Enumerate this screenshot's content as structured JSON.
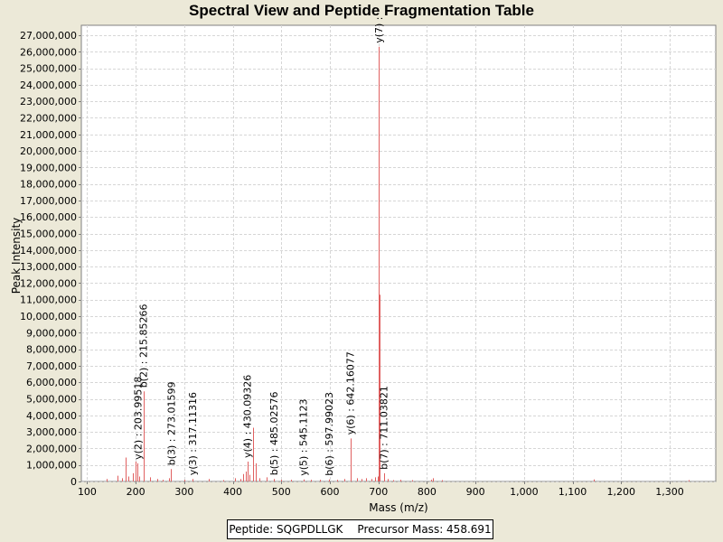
{
  "chart_data": {
    "type": "bar",
    "title": "Spectral View and Peptide Fragmentation Table",
    "xlabel": "Mass (m/z)",
    "ylabel": "Peak Intensity",
    "xlim": [
      88,
      1395
    ],
    "ylim": [
      0,
      27600000
    ],
    "x_ticks": [
      100,
      200,
      300,
      400,
      500,
      600,
      700,
      800,
      900,
      1000,
      1100,
      1200,
      1300
    ],
    "x_tick_labels": [
      "100",
      "200",
      "300",
      "400",
      "500",
      "600",
      "700",
      "800",
      "900",
      "1,000",
      "1,100",
      "1,200",
      "1,300"
    ],
    "y_ticks": [
      0,
      1000000,
      2000000,
      3000000,
      4000000,
      5000000,
      6000000,
      7000000,
      8000000,
      9000000,
      10000000,
      11000000,
      12000000,
      13000000,
      14000000,
      15000000,
      16000000,
      17000000,
      18000000,
      19000000,
      20000000,
      21000000,
      22000000,
      23000000,
      24000000,
      25000000,
      26000000,
      27000000
    ],
    "y_tick_labels": [
      "0",
      "1,000,000",
      "2,000,000",
      "3,000,000",
      "4,000,000",
      "5,000,000",
      "6,000,000",
      "7,000,000",
      "8,000,000",
      "9,000,000",
      "10,000,000",
      "11,000,000",
      "12,000,000",
      "13,000,000",
      "14,000,000",
      "15,000,000",
      "16,000,000",
      "17,000,000",
      "18,000,000",
      "19,000,000",
      "20,000,000",
      "21,000,000",
      "22,000,000",
      "23,000,000",
      "24,000,000",
      "25,000,000",
      "26,000,000",
      "27,000,000"
    ],
    "grid": true,
    "peak_color": "#e06060",
    "peaks": [
      {
        "x": 140,
        "y": 150000
      },
      {
        "x": 163,
        "y": 350000
      },
      {
        "x": 171,
        "y": 200000
      },
      {
        "x": 179,
        "y": 1450000
      },
      {
        "x": 184,
        "y": 300000
      },
      {
        "x": 194,
        "y": 500000
      },
      {
        "x": 199,
        "y": 1200000
      },
      {
        "x": 203.99518,
        "y": 1100000
      },
      {
        "x": 207,
        "y": 300000
      },
      {
        "x": 215.85266,
        "y": 5450000
      },
      {
        "x": 230,
        "y": 250000
      },
      {
        "x": 245,
        "y": 150000
      },
      {
        "x": 255,
        "y": 100000
      },
      {
        "x": 268,
        "y": 200000
      },
      {
        "x": 273.01599,
        "y": 750000
      },
      {
        "x": 300,
        "y": 100000
      },
      {
        "x": 317.11316,
        "y": 150000
      },
      {
        "x": 350,
        "y": 150000
      },
      {
        "x": 380,
        "y": 80000
      },
      {
        "x": 405,
        "y": 200000
      },
      {
        "x": 415,
        "y": 150000
      },
      {
        "x": 422,
        "y": 450000
      },
      {
        "x": 427,
        "y": 600000
      },
      {
        "x": 430.09326,
        "y": 1200000
      },
      {
        "x": 435,
        "y": 400000
      },
      {
        "x": 441,
        "y": 3250000
      },
      {
        "x": 448,
        "y": 1100000
      },
      {
        "x": 455,
        "y": 200000
      },
      {
        "x": 470,
        "y": 250000
      },
      {
        "x": 485.02576,
        "y": 150000
      },
      {
        "x": 500,
        "y": 100000
      },
      {
        "x": 520,
        "y": 100000
      },
      {
        "x": 545.1123,
        "y": 120000
      },
      {
        "x": 560,
        "y": 100000
      },
      {
        "x": 580,
        "y": 100000
      },
      {
        "x": 597.99023,
        "y": 120000
      },
      {
        "x": 615,
        "y": 100000
      },
      {
        "x": 630,
        "y": 150000
      },
      {
        "x": 642.16077,
        "y": 2600000
      },
      {
        "x": 655,
        "y": 200000
      },
      {
        "x": 665,
        "y": 150000
      },
      {
        "x": 675,
        "y": 200000
      },
      {
        "x": 685,
        "y": 150000
      },
      {
        "x": 693,
        "y": 250000
      },
      {
        "x": 698,
        "y": 300000
      },
      {
        "x": 700.5,
        "y": 26300000
      },
      {
        "x": 701.5,
        "y": 11300000
      },
      {
        "x": 703,
        "y": 4700000
      },
      {
        "x": 711.03821,
        "y": 500000
      },
      {
        "x": 720,
        "y": 150000
      },
      {
        "x": 730,
        "y": 80000
      },
      {
        "x": 745,
        "y": 100000
      },
      {
        "x": 770,
        "y": 80000
      },
      {
        "x": 808,
        "y": 100000
      },
      {
        "x": 812,
        "y": 200000
      },
      {
        "x": 830,
        "y": 80000
      },
      {
        "x": 1143,
        "y": 120000
      },
      {
        "x": 1340,
        "y": 80000
      }
    ],
    "annotations": [
      {
        "label": "y(2) : 203.99518",
        "x": 203.99518
      },
      {
        "label": "b(2) : 215.85266",
        "x": 215.85266
      },
      {
        "label": "b(3) : 273.01599",
        "x": 273.01599
      },
      {
        "label": "y(3) : 317.11316",
        "x": 317.11316
      },
      {
        "label": "y(4) : 430.09326",
        "x": 430.09326
      },
      {
        "label": "b(5) : 485.02576",
        "x": 485.02576
      },
      {
        "label": "y(5) : 545.1123",
        "x": 545.1123
      },
      {
        "label": "b(6) : 597.99023",
        "x": 597.99023
      },
      {
        "label": "y(6) : 642.16077",
        "x": 642.16077
      },
      {
        "label": "y(7) :",
        "x": 700.5
      },
      {
        "label": "b(7) : 711.03821",
        "x": 711.03821
      }
    ]
  },
  "info": {
    "peptide": "Peptide: SQGPDLLGK",
    "precursor": "Precursor Mass: 458.691"
  }
}
